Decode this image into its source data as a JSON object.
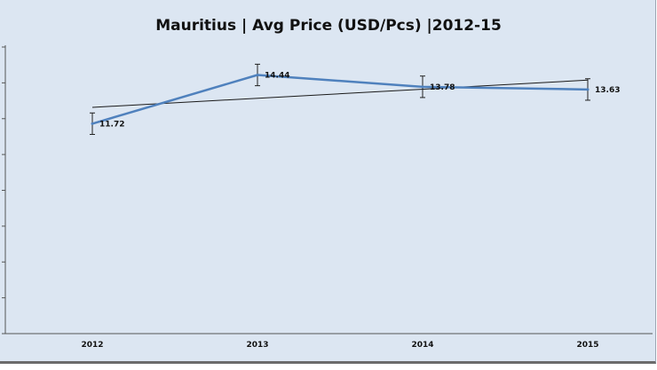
{
  "chart_data": {
    "type": "line",
    "title": "Mauritius | Avg Price (USD/Pcs) |2012-15",
    "categories": [
      "2012",
      "2013",
      "2014",
      "2015"
    ],
    "series": [
      {
        "values": [
          11.72,
          14.44,
          13.78,
          13.63
        ],
        "color": "#4f81bd"
      }
    ],
    "data_labels": [
      "11.72",
      "14.44",
      "13.78",
      "13.63"
    ],
    "error_bars": [
      0.6,
      0.6,
      0.6,
      0.6
    ],
    "trendline": {
      "type": "linear",
      "color": "#1a1a1a"
    },
    "ylim": [
      0,
      16
    ],
    "grid": false,
    "legend": "none"
  }
}
